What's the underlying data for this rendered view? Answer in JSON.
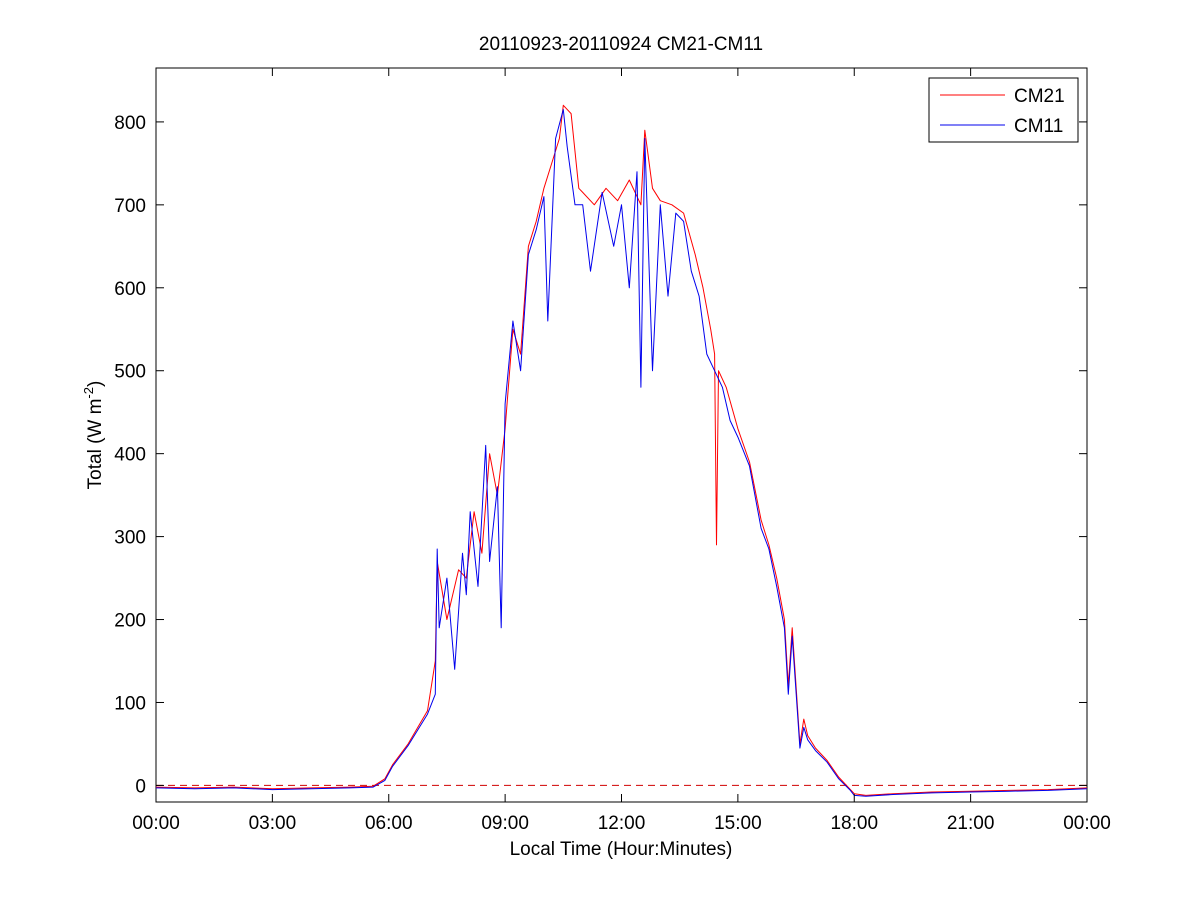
{
  "chart_data": {
    "type": "line",
    "title": "20110923-20110924 CM21-CM11",
    "xlabel": "Local Time (Hour:Minutes)",
    "ylabel": "Total (W m-2)",
    "ylabel_parts": {
      "main": "Total (W m",
      "sup": "-2",
      "close": ")"
    },
    "xlim": [
      0,
      24
    ],
    "ylim": [
      -20,
      865
    ],
    "x_unit": "hours",
    "x_ticks": [
      0,
      3,
      6,
      9,
      12,
      15,
      18,
      21,
      24
    ],
    "x_tick_labels": [
      "00:00",
      "03:00",
      "06:00",
      "09:00",
      "12:00",
      "15:00",
      "18:00",
      "21:00",
      "00:00"
    ],
    "y_ticks": [
      0,
      100,
      200,
      300,
      400,
      500,
      600,
      700,
      800
    ],
    "y_tick_labels": [
      "0",
      "100",
      "200",
      "300",
      "400",
      "500",
      "600",
      "700",
      "800"
    ],
    "grid": false,
    "legend_position": "top-right",
    "reference_line": {
      "y": 0,
      "color": "#d00000",
      "style": "dashed"
    },
    "series": [
      {
        "name": "CM21",
        "color": "#ff0000",
        "points": [
          [
            0,
            -2
          ],
          [
            1,
            -3
          ],
          [
            2,
            -2
          ],
          [
            3,
            -4
          ],
          [
            4,
            -3
          ],
          [
            5,
            -2
          ],
          [
            5.6,
            -1
          ],
          [
            5.9,
            8
          ],
          [
            6.1,
            25
          ],
          [
            6.5,
            50
          ],
          [
            7,
            90
          ],
          [
            7.2,
            150
          ],
          [
            7.25,
            270
          ],
          [
            7.5,
            200
          ],
          [
            7.8,
            260
          ],
          [
            8,
            250
          ],
          [
            8.2,
            330
          ],
          [
            8.4,
            280
          ],
          [
            8.6,
            400
          ],
          [
            8.8,
            350
          ],
          [
            9,
            430
          ],
          [
            9.2,
            550
          ],
          [
            9.4,
            520
          ],
          [
            9.6,
            650
          ],
          [
            9.8,
            680
          ],
          [
            10,
            720
          ],
          [
            10.2,
            750
          ],
          [
            10.4,
            780
          ],
          [
            10.5,
            820
          ],
          [
            10.7,
            810
          ],
          [
            10.9,
            720
          ],
          [
            11,
            715
          ],
          [
            11.3,
            700
          ],
          [
            11.6,
            720
          ],
          [
            11.9,
            705
          ],
          [
            12.2,
            730
          ],
          [
            12.5,
            700
          ],
          [
            12.6,
            790
          ],
          [
            12.8,
            720
          ],
          [
            13,
            705
          ],
          [
            13.3,
            700
          ],
          [
            13.6,
            690
          ],
          [
            13.9,
            640
          ],
          [
            14.1,
            600
          ],
          [
            14.3,
            550
          ],
          [
            14.4,
            520
          ],
          [
            14.45,
            290
          ],
          [
            14.5,
            500
          ],
          [
            14.7,
            480
          ],
          [
            15,
            430
          ],
          [
            15.3,
            390
          ],
          [
            15.6,
            320
          ],
          [
            15.8,
            290
          ],
          [
            16,
            250
          ],
          [
            16.2,
            200
          ],
          [
            16.3,
            120
          ],
          [
            16.4,
            190
          ],
          [
            16.6,
            50
          ],
          [
            16.7,
            80
          ],
          [
            16.8,
            60
          ],
          [
            17,
            45
          ],
          [
            17.3,
            30
          ],
          [
            17.6,
            10
          ],
          [
            17.9,
            -5
          ],
          [
            18,
            -10
          ],
          [
            18.3,
            -12
          ],
          [
            19,
            -10
          ],
          [
            20,
            -8
          ],
          [
            21,
            -7
          ],
          [
            22,
            -6
          ],
          [
            23,
            -5
          ],
          [
            24,
            -3
          ]
        ]
      },
      {
        "name": "CM11",
        "color": "#0000ee",
        "points": [
          [
            0,
            -3
          ],
          [
            1,
            -4
          ],
          [
            2,
            -3
          ],
          [
            3,
            -5
          ],
          [
            4,
            -4
          ],
          [
            5,
            -3
          ],
          [
            5.6,
            -2
          ],
          [
            5.9,
            6
          ],
          [
            6.1,
            23
          ],
          [
            6.5,
            48
          ],
          [
            7,
            86
          ],
          [
            7.2,
            110
          ],
          [
            7.25,
            285
          ],
          [
            7.3,
            190
          ],
          [
            7.5,
            250
          ],
          [
            7.7,
            140
          ],
          [
            7.9,
            280
          ],
          [
            8,
            230
          ],
          [
            8.1,
            330
          ],
          [
            8.3,
            240
          ],
          [
            8.5,
            410
          ],
          [
            8.6,
            270
          ],
          [
            8.8,
            360
          ],
          [
            8.9,
            190
          ],
          [
            9,
            460
          ],
          [
            9.2,
            560
          ],
          [
            9.4,
            500
          ],
          [
            9.6,
            640
          ],
          [
            9.8,
            670
          ],
          [
            10,
            710
          ],
          [
            10.1,
            560
          ],
          [
            10.3,
            780
          ],
          [
            10.5,
            815
          ],
          [
            10.6,
            770
          ],
          [
            10.8,
            700
          ],
          [
            11,
            700
          ],
          [
            11.2,
            620
          ],
          [
            11.5,
            715
          ],
          [
            11.8,
            650
          ],
          [
            12,
            700
          ],
          [
            12.2,
            600
          ],
          [
            12.4,
            740
          ],
          [
            12.5,
            480
          ],
          [
            12.6,
            780
          ],
          [
            12.8,
            500
          ],
          [
            13,
            700
          ],
          [
            13.2,
            590
          ],
          [
            13.4,
            690
          ],
          [
            13.6,
            680
          ],
          [
            13.8,
            620
          ],
          [
            14,
            590
          ],
          [
            14.2,
            520
          ],
          [
            14.4,
            500
          ],
          [
            14.6,
            480
          ],
          [
            14.8,
            440
          ],
          [
            15,
            420
          ],
          [
            15.3,
            385
          ],
          [
            15.6,
            310
          ],
          [
            15.8,
            285
          ],
          [
            16,
            240
          ],
          [
            16.2,
            190
          ],
          [
            16.3,
            110
          ],
          [
            16.4,
            180
          ],
          [
            16.6,
            45
          ],
          [
            16.7,
            70
          ],
          [
            16.8,
            55
          ],
          [
            17,
            42
          ],
          [
            17.3,
            28
          ],
          [
            17.6,
            8
          ],
          [
            17.9,
            -6
          ],
          [
            18,
            -12
          ],
          [
            18.3,
            -13
          ],
          [
            19,
            -11
          ],
          [
            20,
            -9
          ],
          [
            21,
            -8
          ],
          [
            22,
            -7
          ],
          [
            23,
            -6
          ],
          [
            24,
            -4
          ]
        ]
      }
    ]
  }
}
